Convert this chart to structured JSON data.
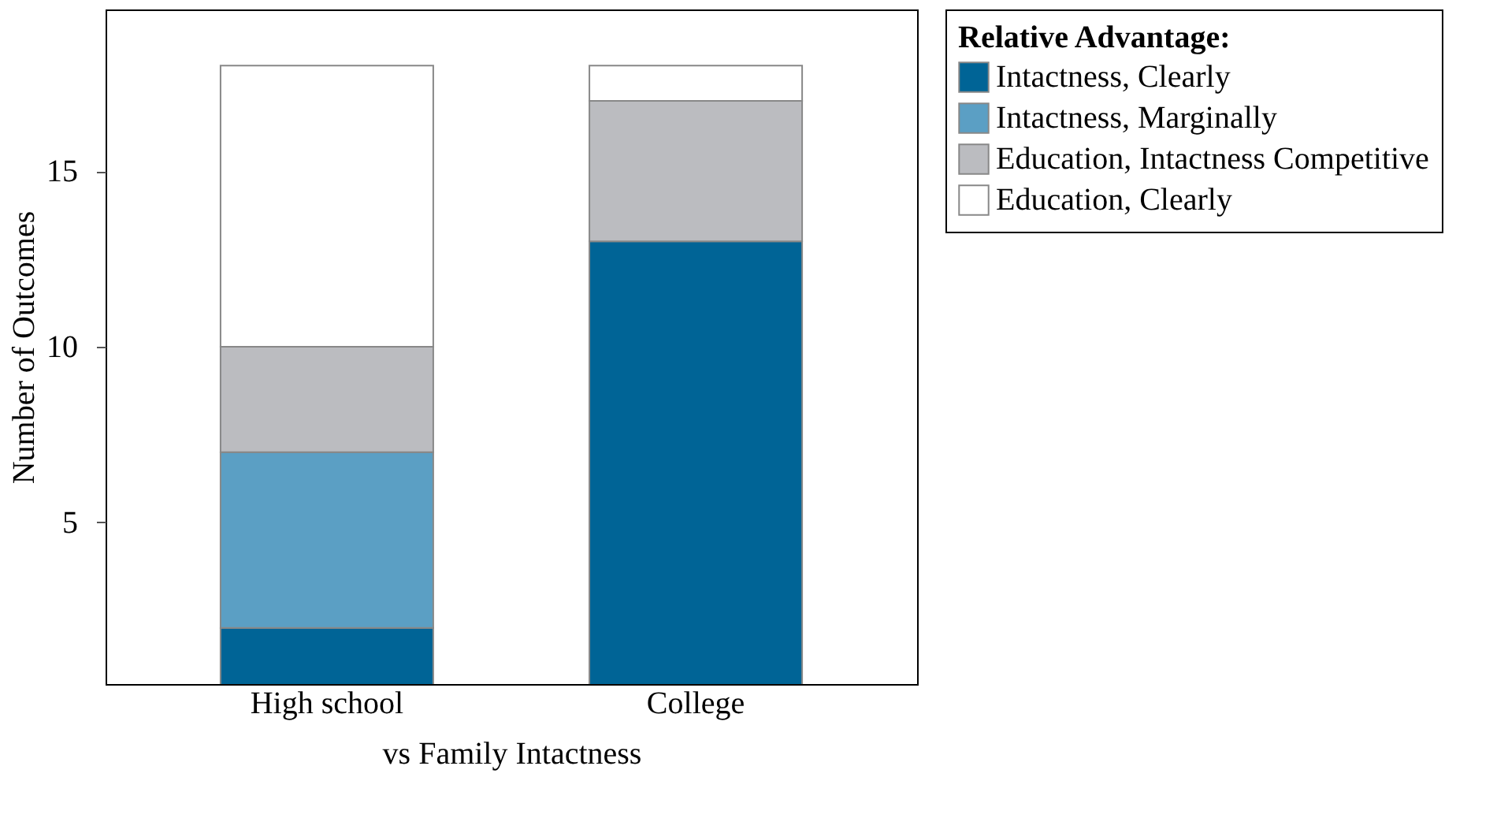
{
  "chart_data": {
    "type": "bar",
    "stacked": true,
    "xlabel": "vs Family Intactness",
    "ylabel": "Number of Outcomes",
    "legend_title": "Relative Advantage:",
    "legend": "right",
    "grid": false,
    "categories": [
      "High school",
      "College"
    ],
    "ylim": [
      0.4,
      19.6
    ],
    "yticks": [
      5,
      10,
      15
    ],
    "series": [
      {
        "name": "Intactness, Clearly",
        "color": "#006496",
        "values": [
          2,
          13
        ]
      },
      {
        "name": "Intactness, Marginally",
        "color": "#5b9fc4",
        "values": [
          5,
          null
        ]
      },
      {
        "name": "Education, Intactness Competitive",
        "color": "#bbbcc0",
        "values": [
          3,
          4
        ]
      },
      {
        "name": "Education, Clearly",
        "color": "#ffffff",
        "values": [
          8,
          1
        ]
      }
    ]
  }
}
